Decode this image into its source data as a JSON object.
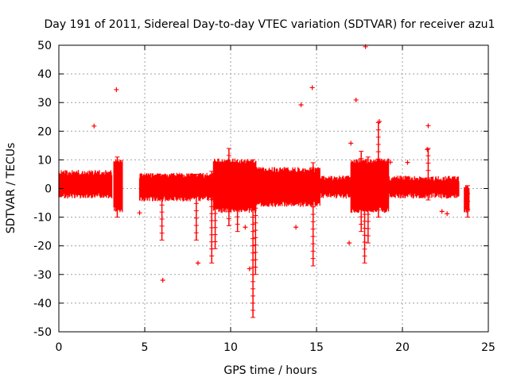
{
  "chart_data": {
    "type": "scatter",
    "title": "Day 191 of 2011, Sidereal Day-to-day VTEC variation (SDTVAR) for receiver azu1",
    "xlabel": "GPS time / hours",
    "ylabel": "SDTVAR / TECUs",
    "xlim": [
      0,
      25
    ],
    "ylim": [
      -50,
      50
    ],
    "xticks": [
      0,
      5,
      10,
      15,
      20,
      25
    ],
    "yticks": [
      -50,
      -40,
      -30,
      -20,
      -10,
      0,
      10,
      20,
      30,
      40,
      50
    ],
    "xtick_labels": [
      "0",
      "5",
      "10",
      "15",
      "20",
      "25"
    ],
    "ytick_labels": [
      "-50",
      "-40",
      "-30",
      "-20",
      "-10",
      "0",
      "10",
      "20",
      "30",
      "40",
      "50"
    ],
    "grid": true,
    "marker": "+",
    "color": "#ff0000",
    "band": {
      "description": "dense band of points",
      "segments": [
        {
          "x_start": 0.0,
          "x_end": 3.1,
          "y_low": -3,
          "y_high": 6
        },
        {
          "x_start": 3.2,
          "x_end": 3.7,
          "y_low": -8,
          "y_high": 10
        },
        {
          "x_start": 4.7,
          "x_end": 9.0,
          "y_low": -4,
          "y_high": 5
        },
        {
          "x_start": 9.0,
          "x_end": 11.5,
          "y_low": -8,
          "y_high": 10
        },
        {
          "x_start": 11.5,
          "x_end": 15.2,
          "y_low": -6,
          "y_high": 7
        },
        {
          "x_start": 15.2,
          "x_end": 17.0,
          "y_low": -3,
          "y_high": 4
        },
        {
          "x_start": 17.0,
          "x_end": 19.2,
          "y_low": -8,
          "y_high": 10
        },
        {
          "x_start": 19.2,
          "x_end": 23.3,
          "y_low": -3,
          "y_high": 4
        },
        {
          "x_start": 23.6,
          "x_end": 23.9,
          "y_low": -8,
          "y_high": 1
        }
      ]
    },
    "spikes": [
      {
        "x": 3.4,
        "y_min": -10,
        "y_max": 11
      },
      {
        "x": 6.0,
        "y_min": -18,
        "y_max": 4
      },
      {
        "x": 8.0,
        "y_min": -18,
        "y_max": 5
      },
      {
        "x": 8.9,
        "y_min": -26,
        "y_max": 6
      },
      {
        "x": 9.1,
        "y_min": -21,
        "y_max": 6
      },
      {
        "x": 9.9,
        "y_min": -13,
        "y_max": 14
      },
      {
        "x": 10.4,
        "y_min": -15,
        "y_max": 8
      },
      {
        "x": 11.3,
        "y_min": -45,
        "y_max": 10
      },
      {
        "x": 11.45,
        "y_min": -30,
        "y_max": 6
      },
      {
        "x": 14.8,
        "y_min": -27,
        "y_max": 9
      },
      {
        "x": 17.6,
        "y_min": -15,
        "y_max": 13
      },
      {
        "x": 17.8,
        "y_min": -26,
        "y_max": 8
      },
      {
        "x": 18.0,
        "y_min": -19,
        "y_max": 11
      },
      {
        "x": 18.6,
        "y_min": -10,
        "y_max": 23
      },
      {
        "x": 21.5,
        "y_min": -4,
        "y_max": 14
      },
      {
        "x": 23.8,
        "y_min": -10,
        "y_max": 1
      }
    ],
    "outliers": [
      {
        "x": 2.05,
        "y": 21.8
      },
      {
        "x": 3.35,
        "y": 34.5
      },
      {
        "x": 4.7,
        "y": -8.5
      },
      {
        "x": 6.05,
        "y": -32
      },
      {
        "x": 8.1,
        "y": -26
      },
      {
        "x": 10.85,
        "y": -13.5
      },
      {
        "x": 11.1,
        "y": -28
      },
      {
        "x": 13.8,
        "y": -13.5
      },
      {
        "x": 14.1,
        "y": 29.2
      },
      {
        "x": 14.75,
        "y": 35.2
      },
      {
        "x": 17.0,
        "y": 15.8
      },
      {
        "x": 17.3,
        "y": 30.9
      },
      {
        "x": 17.85,
        "y": 49.5
      },
      {
        "x": 16.9,
        "y": -19
      },
      {
        "x": 18.65,
        "y": 23.4
      },
      {
        "x": 19.3,
        "y": 9.2
      },
      {
        "x": 20.3,
        "y": 9.1
      },
      {
        "x": 21.5,
        "y": 21.9
      },
      {
        "x": 21.45,
        "y": 13.6
      },
      {
        "x": 22.3,
        "y": -8
      },
      {
        "x": 22.6,
        "y": -8.8
      }
    ]
  }
}
